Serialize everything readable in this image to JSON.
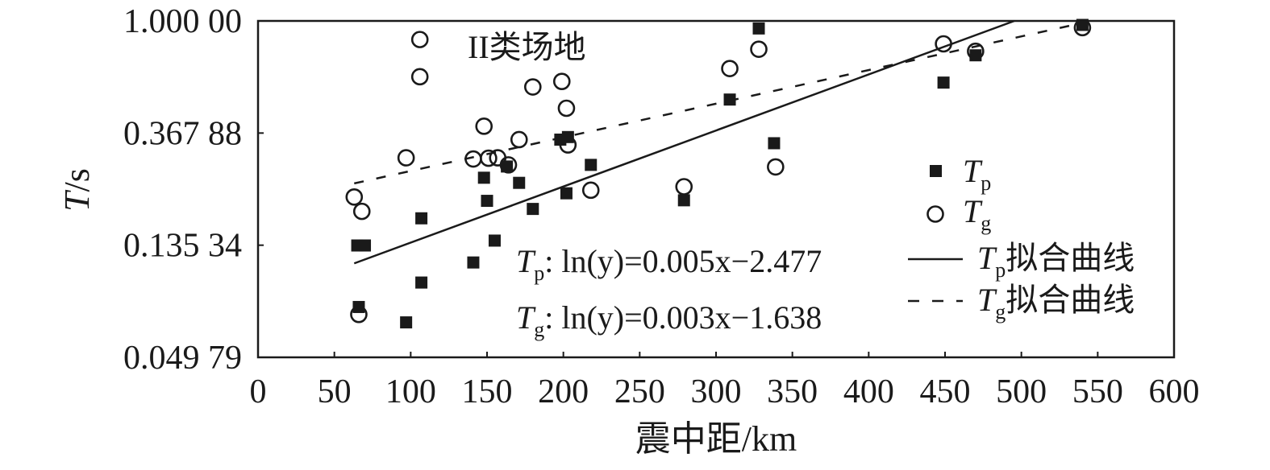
{
  "chart_data": {
    "type": "scatter",
    "xlabel": "震中距/km",
    "ylabel": {
      "italic": "T",
      "rest": "/s"
    },
    "annotation": "II类场地",
    "xlim": [
      0,
      600
    ],
    "xticks": [
      0,
      50,
      100,
      150,
      200,
      250,
      300,
      350,
      400,
      450,
      500,
      550,
      600
    ],
    "ylog": true,
    "ylim": [
      0.04979,
      1.0
    ],
    "yticks": [
      {
        "value": 1.0,
        "label": "1.000 00"
      },
      {
        "value": 0.36788,
        "label": "0.367 88"
      },
      {
        "value": 0.13534,
        "label": "0.135 34"
      },
      {
        "value": 0.04979,
        "label": "0.049 79"
      }
    ],
    "series": [
      {
        "name": "Tp",
        "marker": "filled-square",
        "legend": {
          "italic": "T",
          "sub": "p"
        },
        "points": [
          [
            65,
            0.135
          ],
          [
            70,
            0.135
          ],
          [
            66,
            0.078
          ],
          [
            97,
            0.068
          ],
          [
            107,
            0.172
          ],
          [
            107,
            0.097
          ],
          [
            141,
            0.116
          ],
          [
            148,
            0.247
          ],
          [
            150,
            0.201
          ],
          [
            155,
            0.141
          ],
          [
            163,
            0.273
          ],
          [
            171,
            0.236
          ],
          [
            180,
            0.187
          ],
          [
            198,
            0.347
          ],
          [
            203,
            0.355
          ],
          [
            202,
            0.215
          ],
          [
            218,
            0.277
          ],
          [
            279,
            0.202
          ],
          [
            309,
            0.496
          ],
          [
            328,
            0.935
          ],
          [
            338,
            0.336
          ],
          [
            449,
            0.577
          ],
          [
            470,
            0.736
          ],
          [
            540,
            0.965
          ]
        ]
      },
      {
        "name": "Tg",
        "marker": "open-circle",
        "legend": {
          "italic": "T",
          "sub": "g"
        },
        "points": [
          [
            63,
            0.208
          ],
          [
            68,
            0.183
          ],
          [
            66,
            0.073
          ],
          [
            97,
            0.295
          ],
          [
            106,
            0.847
          ],
          [
            106,
            0.608
          ],
          [
            141,
            0.292
          ],
          [
            148,
            0.391
          ],
          [
            151,
            0.294
          ],
          [
            157,
            0.295
          ],
          [
            164,
            0.277
          ],
          [
            171,
            0.347
          ],
          [
            180,
            0.555
          ],
          [
            199,
            0.583
          ],
          [
            202,
            0.459
          ],
          [
            203,
            0.331
          ],
          [
            218,
            0.221
          ],
          [
            279,
            0.228
          ],
          [
            309,
            0.654
          ],
          [
            328,
            0.777
          ],
          [
            339,
            0.272
          ],
          [
            449,
            0.815
          ],
          [
            470,
            0.763
          ],
          [
            540,
            0.942
          ]
        ]
      }
    ],
    "fits": [
      {
        "series": "Tp",
        "style": "solid",
        "slope": 0.005,
        "intercept": -2.477,
        "x_range": [
          63,
          540
        ],
        "equation": {
          "var": "T",
          "sub": "p",
          "text": ": ln(y)=0.005x−2.477"
        },
        "legend": {
          "var": "T",
          "sub": "p",
          "suffix": "拟合曲线"
        }
      },
      {
        "series": "Tg",
        "style": "dashed",
        "slope": 0.003,
        "intercept": -1.638,
        "x_range": [
          63,
          540
        ],
        "equation": {
          "var": "T",
          "sub": "g",
          "text": ": ln(y)=0.003x−1.638"
        },
        "legend": {
          "var": "T",
          "sub": "g",
          "suffix": "拟合曲线"
        }
      }
    ]
  }
}
